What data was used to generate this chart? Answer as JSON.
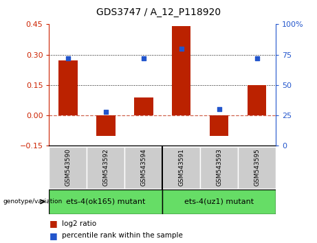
{
  "title": "GDS3747 / A_12_P118920",
  "categories": [
    "GSM543590",
    "GSM543592",
    "GSM543594",
    "GSM543591",
    "GSM543593",
    "GSM543595"
  ],
  "log2_ratio": [
    0.27,
    -0.1,
    0.09,
    0.44,
    -0.1,
    0.15
  ],
  "percentile_rank": [
    72,
    28,
    72,
    80,
    30,
    72
  ],
  "ylim_left": [
    -0.15,
    0.45
  ],
  "ylim_right": [
    0,
    100
  ],
  "yticks_left": [
    -0.15,
    0,
    0.15,
    0.3,
    0.45
  ],
  "yticks_right": [
    0,
    25,
    50,
    75,
    100
  ],
  "bar_color": "#bb2200",
  "scatter_color": "#2255cc",
  "group1_label": "ets-4(ok165) mutant",
  "group2_label": "ets-4(uz1) mutant",
  "group_color": "#66dd66",
  "tick_label_bg": "#cccccc",
  "legend_log2": "log2 ratio",
  "legend_pct": "percentile rank within the sample",
  "left_ylabel_color": "#cc2200",
  "right_ylabel_color": "#2255cc",
  "title_fontsize": 10,
  "axis_fontsize": 8,
  "label_fontsize": 7.5,
  "group_fontsize": 8,
  "legend_fontsize": 7.5
}
